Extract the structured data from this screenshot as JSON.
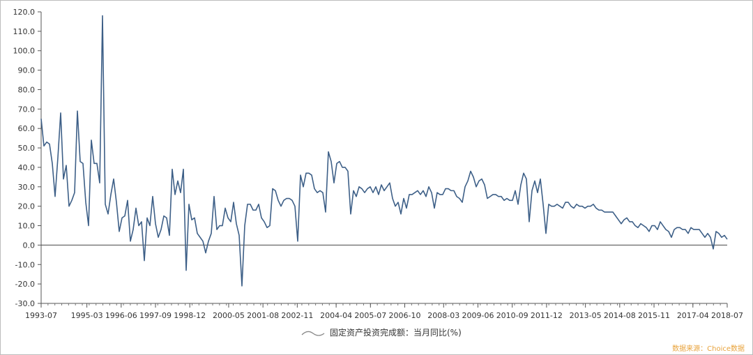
{
  "chart_data": {
    "type": "line",
    "series": [
      {
        "name": "固定资产投资完成额：当月同比(%)",
        "color": "#3d5f87",
        "start": "1993-07",
        "frequency": "monthly",
        "values": [
          65,
          51,
          53,
          52,
          42,
          25,
          45,
          68,
          34,
          41,
          20,
          23,
          27,
          69,
          43,
          42,
          22,
          10,
          54,
          42,
          42,
          32,
          118,
          21,
          16,
          26,
          34,
          22,
          7,
          14,
          15,
          23,
          2,
          8,
          19,
          10,
          12,
          -8,
          14,
          10,
          25,
          11,
          4,
          8,
          15,
          14,
          5,
          39,
          26,
          33,
          27,
          39,
          -13,
          21,
          13,
          14,
          6,
          4,
          2,
          -4,
          2,
          6,
          25,
          8,
          10,
          10,
          19,
          14,
          12,
          22,
          11,
          5,
          -21,
          10,
          21,
          21,
          18,
          18,
          21,
          14,
          12,
          9,
          10,
          29,
          28,
          23,
          20,
          23,
          24,
          24,
          23,
          20,
          2,
          36,
          30,
          37,
          37,
          36,
          29,
          27,
          28,
          27,
          17,
          48,
          43,
          32,
          42,
          43,
          40,
          40,
          38,
          16,
          28,
          25,
          30,
          29,
          27,
          29,
          30,
          27,
          30,
          26,
          31,
          28,
          30,
          32,
          24,
          20,
          22,
          16,
          24,
          19,
          26,
          26,
          27,
          28,
          26,
          28,
          25,
          30,
          27,
          19,
          27,
          26,
          26,
          29,
          29,
          28,
          28,
          25,
          24,
          22,
          30,
          33,
          38,
          35,
          30,
          33,
          34,
          31,
          24,
          25,
          26,
          26,
          25,
          25,
          23,
          24,
          23,
          23,
          28,
          21,
          31,
          37,
          34,
          12,
          28,
          33,
          27,
          34,
          21,
          6,
          21,
          20,
          20,
          21,
          20,
          19,
          22,
          22,
          20,
          19,
          21,
          20,
          20,
          19,
          20,
          20,
          21,
          19,
          18,
          18,
          17,
          17,
          17,
          17,
          15,
          13,
          11,
          13,
          14,
          12,
          12,
          10,
          9,
          11,
          10,
          9,
          7,
          10,
          10,
          8,
          12,
          10,
          8,
          7,
          4,
          8,
          9,
          9,
          8,
          8,
          6,
          9,
          8,
          8,
          8,
          6,
          4,
          6,
          4,
          -2,
          7,
          6,
          4,
          5,
          3
        ]
      }
    ],
    "x_ticks": [
      "1993-07",
      "1995-03",
      "1996-06",
      "1997-09",
      "1998-12",
      "2000-05",
      "2001-08",
      "2002-11",
      "2004-04",
      "2005-07",
      "2006-10",
      "2008-03",
      "2009-06",
      "2010-09",
      "2011-12",
      "2013-05",
      "2014-08",
      "2015-11",
      "2017-04",
      "2018-07"
    ],
    "y_ticks": [
      "120.0",
      "110.0",
      "100.0",
      "90.0",
      "80.0",
      "70.0",
      "60.0",
      "50.0",
      "40.0",
      "30.0",
      "20.0",
      "10.0",
      "0.0",
      "-10.0",
      "-20.0",
      "-30.0"
    ],
    "ylim": [
      -30,
      120
    ],
    "x_range": [
      "1993-07",
      "2018-07"
    ],
    "grid": false,
    "zero_line": true,
    "legend_position": "bottom-center",
    "source_note": "数据来源：Choice数据"
  }
}
